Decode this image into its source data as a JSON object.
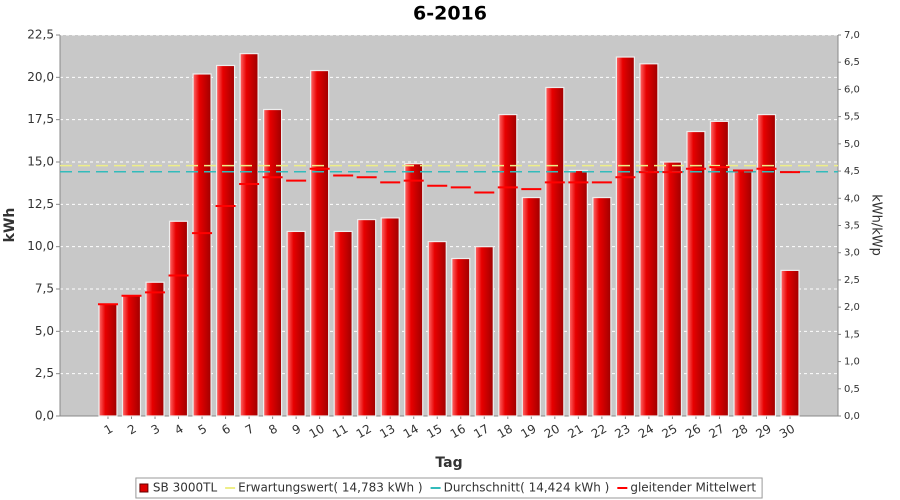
{
  "chart_data": {
    "type": "bar",
    "title": "6-2016",
    "x_label": "Tag",
    "y_label": "kWh",
    "y2_label": "kWh/kWp",
    "categories": [
      "1",
      "2",
      "3",
      "4",
      "5",
      "6",
      "7",
      "8",
      "9",
      "10",
      "11",
      "12",
      "13",
      "14",
      "15",
      "16",
      "17",
      "18",
      "19",
      "20",
      "21",
      "22",
      "23",
      "24",
      "25",
      "26",
      "27",
      "28",
      "29",
      "30"
    ],
    "series": [
      {
        "name": "SB 3000TL",
        "color": "#dd0000",
        "type": "bar",
        "values": [
          6.6,
          7.1,
          7.9,
          11.5,
          20.2,
          20.7,
          21.4,
          18.1,
          10.9,
          20.4,
          10.9,
          11.6,
          11.7,
          14.9,
          10.3,
          9.3,
          10.0,
          17.8,
          12.9,
          19.4,
          14.5,
          12.9,
          21.2,
          20.8,
          15.0,
          16.8,
          17.4,
          14.5,
          17.8,
          8.6
        ]
      },
      {
        "name": "Erwartungswert( 14,783 kWh )",
        "color": "#eeee88",
        "type": "hline",
        "value": 14.783
      },
      {
        "name": "Durchschnitt( 14,424 kWh )",
        "color": "#33bbbb",
        "type": "hline",
        "value": 14.424
      },
      {
        "name": "gleitender Mittelwert",
        "color": "#ff0000",
        "type": "dash",
        "values": [
          6.6,
          7.1,
          7.3,
          8.3,
          10.8,
          12.4,
          13.7,
          14.1,
          13.9,
          14.6,
          14.2,
          14.1,
          13.8,
          13.9,
          13.6,
          13.5,
          13.2,
          13.5,
          13.4,
          13.8,
          13.8,
          13.8,
          14.1,
          14.4,
          14.4,
          14.6,
          14.7,
          14.5,
          14.6,
          14.4
        ]
      }
    ],
    "ylim": [
      0,
      22.5
    ],
    "yticks": [
      {
        "value": 0,
        "label": "0,0"
      },
      {
        "value": 2.5,
        "label": "2,5"
      },
      {
        "value": 5,
        "label": "5,0"
      },
      {
        "value": 7.5,
        "label": "7,5"
      },
      {
        "value": 10,
        "label": "10,0"
      },
      {
        "value": 12.5,
        "label": "12,5"
      },
      {
        "value": 15,
        "label": "15,0"
      },
      {
        "value": 17.5,
        "label": "17,5"
      },
      {
        "value": 20,
        "label": "20,0"
      },
      {
        "value": 22.5,
        "label": "22,5"
      }
    ],
    "y2lim": [
      0,
      7
    ],
    "y2ticks": [
      {
        "value": 0,
        "label": "0,0"
      },
      {
        "value": 0.5,
        "label": "0,5"
      },
      {
        "value": 1,
        "label": "1,0"
      },
      {
        "value": 1.5,
        "label": "1,5"
      },
      {
        "value": 2,
        "label": "2,0"
      },
      {
        "value": 2.5,
        "label": "2,5"
      },
      {
        "value": 3,
        "label": "3,0"
      },
      {
        "value": 3.5,
        "label": "3,5"
      },
      {
        "value": 4,
        "label": "4,0"
      },
      {
        "value": 4.5,
        "label": "4,5"
      },
      {
        "value": 5,
        "label": "5,0"
      },
      {
        "value": 5.5,
        "label": "5,5"
      },
      {
        "value": 6,
        "label": "6,0"
      },
      {
        "value": 6.5,
        "label": "6,5"
      },
      {
        "value": 7,
        "label": "7,0"
      }
    ],
    "grid": true,
    "legend": "bottom"
  }
}
